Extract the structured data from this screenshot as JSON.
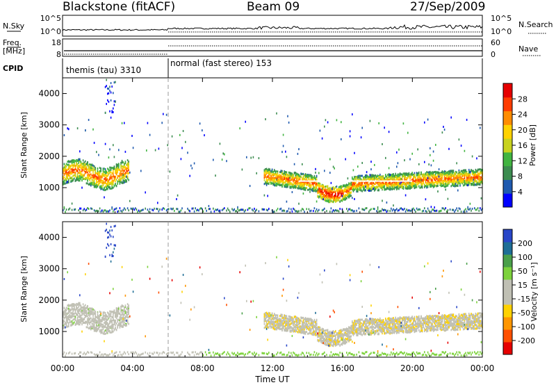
{
  "header": {
    "station": "Blackstone (fitACF)",
    "beam": "Beam 09",
    "date": "27/Sep/2009"
  },
  "summary": {
    "nsky_label": "N.Sky",
    "nsky_ticks": [
      "10^5",
      "10^0"
    ],
    "nsearch_label": "N.Search",
    "nsearch_ticks": [
      "10^5",
      "10^0"
    ],
    "freq_label": "Freq.",
    "freq_unit": "[MHz]",
    "freq_ticks": [
      "18",
      "8"
    ],
    "nave_label": "Nave",
    "nave_ticks": [
      "60",
      "0"
    ],
    "cpid_label": "CPID",
    "cpid_modes": [
      {
        "name": "themis (tau) 3310",
        "start": "00:00",
        "end": "06:00"
      },
      {
        "name": "normal (fast stereo) 153",
        "start": "06:00",
        "end": "24:00"
      }
    ]
  },
  "xaxis": {
    "label": "Time UT",
    "ticks": [
      "00:00",
      "04:00",
      "08:00",
      "12:00",
      "16:00",
      "20:00",
      "00:00"
    ]
  },
  "power_panel": {
    "ylabel": "Slant Range [km]",
    "yticks": [
      "1000",
      "2000",
      "3000",
      "4000"
    ],
    "cbar_label": "Power [dB]",
    "cbar_ticks": [
      "4",
      "8",
      "12",
      "16",
      "20",
      "24",
      "28"
    ],
    "cbar_colors": [
      "#0000ff",
      "#1f5aaf",
      "#3c8c50",
      "#41b441",
      "#c8d21e",
      "#ffd200",
      "#ff8c00",
      "#ff3c00",
      "#e60000"
    ]
  },
  "velocity_panel": {
    "ylabel": "Slant Range [km]",
    "yticks": [
      "1000",
      "2000",
      "3000",
      "4000"
    ],
    "cbar_label": "Velocity [m s⁻¹]",
    "cbar_ticks": [
      "200",
      "100",
      "50",
      "15",
      "-15",
      "-50",
      "-100",
      "-200"
    ],
    "cbar_colors": [
      "#2846c8",
      "#1e6e96",
      "#4aa04a",
      "#7dd23c",
      "#c0c0b4",
      "#c0c0b4",
      "#ffd200",
      "#ff9600",
      "#ff5000",
      "#e60000"
    ]
  },
  "chart_data": [
    {
      "type": "heatmap",
      "title": "Power",
      "ylabel": "Slant Range [km]",
      "xlabel": "Time UT",
      "x_range_hours": [
        0,
        24
      ],
      "ylim": [
        180,
        4500
      ],
      "colorbar": {
        "label": "Power [dB]",
        "range": [
          0,
          32
        ]
      },
      "scatter_bands": [
        {
          "t_start": 0.0,
          "t_end": 3.8,
          "center_range_km": 1450,
          "typical_power_db": 24
        },
        {
          "t_start": 11.5,
          "t_end": 24.0,
          "center_range_km": 1250,
          "typical_power_db": 16
        },
        {
          "t_start": 14.5,
          "t_end": 16.0,
          "center_range_km": 850,
          "typical_power_db": 24
        }
      ]
    },
    {
      "type": "heatmap",
      "title": "Velocity",
      "ylabel": "Slant Range [km]",
      "xlabel": "Time UT",
      "x_range_hours": [
        0,
        24
      ],
      "ylim": [
        180,
        4500
      ],
      "colorbar": {
        "label": "Velocity [m s⁻¹]",
        "range": [
          -200,
          200
        ]
      },
      "scatter_bands": [
        {
          "t_start": 0.0,
          "t_end": 3.8,
          "center_range_km": 1450,
          "typical_velocity": 0
        },
        {
          "t_start": 11.5,
          "t_end": 24.0,
          "center_range_km": 1250,
          "typical_velocity": -30
        }
      ]
    }
  ]
}
